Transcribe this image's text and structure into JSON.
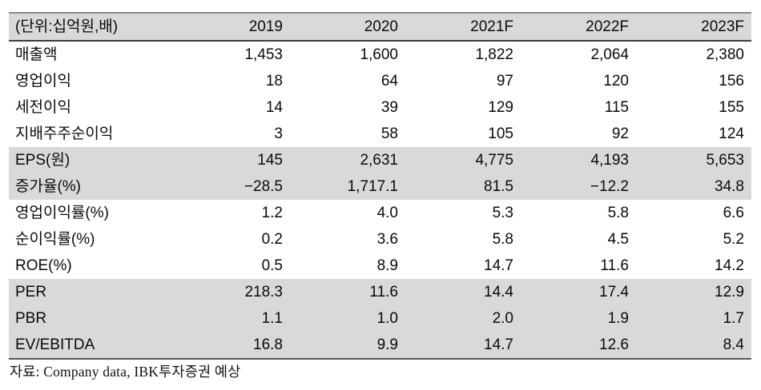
{
  "table": {
    "unit_label": "(단위:십억원,배)",
    "columns": [
      "2019",
      "2020",
      "2021F",
      "2022F",
      "2023F"
    ],
    "rows": [
      {
        "label": "매출액",
        "values": [
          "1,453",
          "1,600",
          "1,822",
          "2,064",
          "2,380"
        ],
        "shaded": false
      },
      {
        "label": "영업이익",
        "values": [
          "18",
          "64",
          "97",
          "120",
          "156"
        ],
        "shaded": false
      },
      {
        "label": "세전이익",
        "values": [
          "14",
          "39",
          "129",
          "115",
          "155"
        ],
        "shaded": false
      },
      {
        "label": "지배주주순이익",
        "values": [
          "3",
          "58",
          "105",
          "92",
          "124"
        ],
        "shaded": false
      },
      {
        "label": "EPS(원)",
        "values": [
          "145",
          "2,631",
          "4,775",
          "4,193",
          "5,653"
        ],
        "shaded": true
      },
      {
        "label": "증가율(%)",
        "values": [
          "−28.5",
          "1,717.1",
          "81.5",
          "−12.2",
          "34.8"
        ],
        "shaded": true
      },
      {
        "label": "영업이익률(%)",
        "values": [
          "1.2",
          "4.0",
          "5.3",
          "5.8",
          "6.6"
        ],
        "shaded": false
      },
      {
        "label": "순이익률(%)",
        "values": [
          "0.2",
          "3.6",
          "5.8",
          "4.5",
          "5.2"
        ],
        "shaded": false
      },
      {
        "label": "ROE(%)",
        "values": [
          "0.5",
          "8.9",
          "14.7",
          "11.6",
          "14.2"
        ],
        "shaded": false
      },
      {
        "label": "PER",
        "values": [
          "218.3",
          "11.6",
          "14.4",
          "17.4",
          "12.9"
        ],
        "shaded": true
      },
      {
        "label": "PBR",
        "values": [
          "1.1",
          "1.0",
          "2.0",
          "1.9",
          "1.7"
        ],
        "shaded": true
      },
      {
        "label": "EV/EBITDA",
        "values": [
          "16.8",
          "9.9",
          "14.7",
          "12.6",
          "8.4"
        ],
        "shaded": true
      }
    ]
  },
  "footer": {
    "source_label": "자료: Company data, IBK투자증권 예상"
  },
  "colors": {
    "row_shade": "#d9d9d9",
    "top_border": "#8a8a8a",
    "header_underline": "#3d3d3d",
    "bottom_border": "#5a5a5a"
  }
}
